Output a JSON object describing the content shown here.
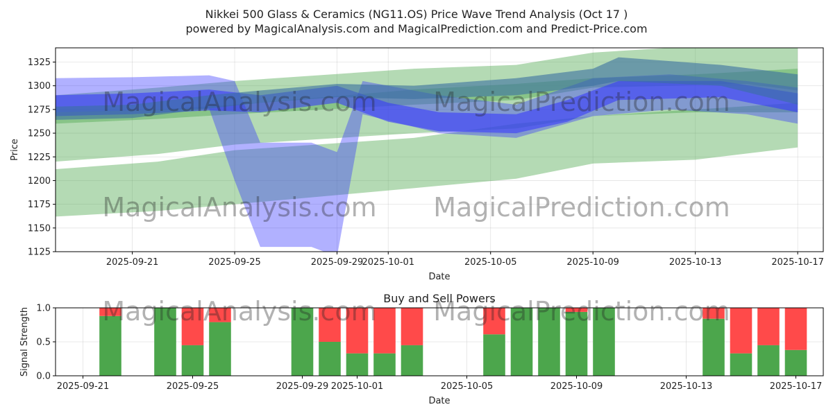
{
  "title_line1": "Nikkei 500 Glass & Ceramics (NG11.OS) Price Wave Trend Analysis (Oct 17 )",
  "title_line2": "powered by MagicalAnalysis.com and MagicalPrediction.com and Predict-Price.com",
  "watermark_left": "MagicalAnalysis.com",
  "watermark_right": "MagicalPrediction.com",
  "chart_data": [
    {
      "type": "area",
      "title": "",
      "xlabel": "Date",
      "ylabel": "Price",
      "ylim": [
        1125,
        1340
      ],
      "yticks": [
        1125,
        1150,
        1175,
        1200,
        1225,
        1250,
        1275,
        1300,
        1325
      ],
      "xlim": [
        "2025-09-18",
        "2025-10-18"
      ],
      "xtick_labels": [
        {
          "date": "2025-09-21",
          "label": "2025-09-21"
        },
        {
          "date": "2025-09-25",
          "label": "2025-09-25"
        },
        {
          "date": "2025-09-29",
          "label": "2025-09-29"
        },
        {
          "date": "2025-10-01",
          "label": "2025-10-01"
        },
        {
          "date": "2025-10-05",
          "label": "2025-10-05"
        },
        {
          "date": "2025-10-09",
          "label": "2025-10-09"
        },
        {
          "date": "2025-10-13",
          "label": "2025-10-13"
        },
        {
          "date": "2025-10-17",
          "label": "2025-10-17"
        }
      ],
      "grid": true,
      "green_bands": [
        {
          "name": "upper-channel",
          "x": [
            "2025-09-18",
            "2025-09-22",
            "2025-09-25",
            "2025-10-02",
            "2025-10-06",
            "2025-10-09",
            "2025-10-15",
            "2025-10-17"
          ],
          "upper": [
            1290,
            1298,
            1305,
            1318,
            1322,
            1335,
            1345,
            1340
          ],
          "lower": [
            1260,
            1265,
            1270,
            1280,
            1285,
            1298,
            1302,
            1295
          ]
        },
        {
          "name": "middle-channel",
          "x": [
            "2025-09-18",
            "2025-09-22",
            "2025-09-25",
            "2025-10-02",
            "2025-10-06",
            "2025-10-09",
            "2025-10-13",
            "2025-10-17"
          ],
          "upper": [
            1272,
            1275,
            1280,
            1296,
            1302,
            1308,
            1312,
            1318
          ],
          "lower": [
            1220,
            1228,
            1238,
            1250,
            1255,
            1268,
            1272,
            1272
          ]
        },
        {
          "name": "lower-channel",
          "x": [
            "2025-09-18",
            "2025-09-22",
            "2025-09-25",
            "2025-10-02",
            "2025-10-06",
            "2025-10-09",
            "2025-10-13",
            "2025-10-17"
          ],
          "upper": [
            1212,
            1220,
            1232,
            1245,
            1260,
            1268,
            1275,
            1282
          ],
          "lower": [
            1162,
            1168,
            1175,
            1192,
            1202,
            1218,
            1222,
            1235
          ]
        }
      ],
      "blue_bands": [
        {
          "name": "wide-wave",
          "x": [
            "2025-09-18",
            "2025-09-21",
            "2025-09-24",
            "2025-09-25",
            "2025-09-26",
            "2025-09-28",
            "2025-09-29",
            "2025-09-30",
            "2025-10-03",
            "2025-10-06",
            "2025-10-09",
            "2025-10-12",
            "2025-10-15",
            "2025-10-17"
          ],
          "upper": [
            1308,
            1309,
            1311,
            1305,
            1240,
            1240,
            1230,
            1305,
            1290,
            1280,
            1308,
            1312,
            1305,
            1298
          ],
          "lower": [
            1272,
            1274,
            1276,
            1200,
            1130,
            1130,
            1120,
            1270,
            1250,
            1245,
            1268,
            1275,
            1270,
            1260
          ]
        },
        {
          "name": "core-wave",
          "x": [
            "2025-09-18",
            "2025-09-21",
            "2025-09-24",
            "2025-09-26",
            "2025-09-29",
            "2025-10-01",
            "2025-10-03",
            "2025-10-06",
            "2025-10-08",
            "2025-10-10",
            "2025-10-14",
            "2025-10-17"
          ],
          "upper": [
            1290,
            1292,
            1296,
            1290,
            1300,
            1282,
            1272,
            1270,
            1285,
            1305,
            1305,
            1292
          ],
          "lower": [
            1268,
            1270,
            1274,
            1272,
            1282,
            1262,
            1252,
            1250,
            1262,
            1285,
            1288,
            1272
          ]
        },
        {
          "name": "trend-wave",
          "x": [
            "2025-09-18",
            "2025-09-21",
            "2025-09-24",
            "2025-09-26",
            "2025-09-29",
            "2025-10-02",
            "2025-10-06",
            "2025-10-09",
            "2025-10-10",
            "2025-10-14",
            "2025-10-17"
          ],
          "upper": [
            1278,
            1280,
            1290,
            1295,
            1302,
            1300,
            1308,
            1318,
            1330,
            1322,
            1312
          ],
          "lower": [
            1264,
            1266,
            1276,
            1282,
            1288,
            1286,
            1290,
            1300,
            1305,
            1300,
            1280
          ]
        }
      ]
    },
    {
      "type": "bar",
      "title": "Buy and Sell Powers",
      "xlabel": "Date",
      "ylabel": "Signal Strength",
      "ylim": [
        0,
        1
      ],
      "yticks": [
        0.0,
        0.5,
        1.0
      ],
      "xlim": [
        "2025-09-20",
        "2025-10-18"
      ],
      "xtick_labels": [
        {
          "date": "2025-09-21",
          "label": "2025-09-21"
        },
        {
          "date": "2025-09-25",
          "label": "2025-09-25"
        },
        {
          "date": "2025-09-29",
          "label": "2025-09-29"
        },
        {
          "date": "2025-10-01",
          "label": "2025-10-01"
        },
        {
          "date": "2025-10-05",
          "label": "2025-10-05"
        },
        {
          "date": "2025-10-09",
          "label": "2025-10-09"
        },
        {
          "date": "2025-10-13",
          "label": "2025-10-13"
        },
        {
          "date": "2025-10-17",
          "label": "2025-10-17"
        }
      ],
      "series": [
        {
          "name": "Buy",
          "color": "#4ca64c"
        },
        {
          "name": "Sell",
          "color": "#ff4a4a"
        }
      ],
      "bars": [
        {
          "date": "2025-09-22",
          "buy": 0.88
        },
        {
          "date": "2025-09-24",
          "buy": 1.0
        },
        {
          "date": "2025-09-25",
          "buy": 0.45
        },
        {
          "date": "2025-09-26",
          "buy": 0.79
        },
        {
          "date": "2025-09-29",
          "buy": 1.0
        },
        {
          "date": "2025-09-30",
          "buy": 0.5
        },
        {
          "date": "2025-10-01",
          "buy": 0.33
        },
        {
          "date": "2025-10-02",
          "buy": 0.33
        },
        {
          "date": "2025-10-03",
          "buy": 0.45
        },
        {
          "date": "2025-10-06",
          "buy": 0.61
        },
        {
          "date": "2025-10-07",
          "buy": 1.0
        },
        {
          "date": "2025-10-08",
          "buy": 1.0
        },
        {
          "date": "2025-10-09",
          "buy": 0.94
        },
        {
          "date": "2025-10-10",
          "buy": 1.0
        },
        {
          "date": "2025-10-14",
          "buy": 0.84
        },
        {
          "date": "2025-10-15",
          "buy": 0.33
        },
        {
          "date": "2025-10-16",
          "buy": 0.45
        },
        {
          "date": "2025-10-17",
          "buy": 0.38
        }
      ]
    }
  ],
  "colors": {
    "green_band": "#4ca64c",
    "blue_band": "#3333ff",
    "dark_band": "#3a6fa0",
    "buy": "#4ca64c",
    "sell": "#ff4a4a"
  }
}
